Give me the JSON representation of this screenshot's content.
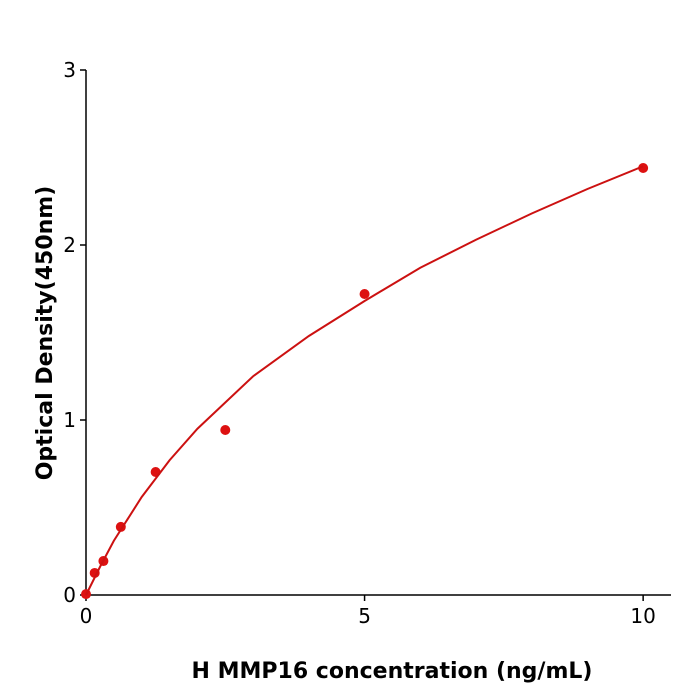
{
  "chart_data": {
    "type": "scatter",
    "xlabel": "H  MMP16 concentration (ng/mL)",
    "ylabel": "Optical Density(450nm)",
    "xlim": [
      0,
      10.5
    ],
    "ylim": [
      0,
      3
    ],
    "xticks": [
      0,
      5,
      10
    ],
    "yticks": [
      0,
      1,
      2,
      3
    ],
    "series": [
      {
        "mode": "markers",
        "color": "#dd1111",
        "x": [
          0,
          0.156,
          0.3125,
          0.625,
          1.25,
          2.5,
          5,
          10
        ],
        "values": [
          0.005,
          0.126,
          0.194,
          0.389,
          0.703,
          0.943,
          1.72,
          2.44
        ]
      },
      {
        "mode": "line",
        "color": "#cc1111",
        "x": [
          0,
          0.25,
          0.5,
          1,
          1.5,
          2,
          3,
          4,
          5,
          6,
          7,
          8,
          9,
          10
        ],
        "values": [
          0,
          0.16,
          0.31,
          0.56,
          0.77,
          0.95,
          1.25,
          1.48,
          1.68,
          1.87,
          2.03,
          2.18,
          2.32,
          2.45
        ]
      }
    ]
  }
}
